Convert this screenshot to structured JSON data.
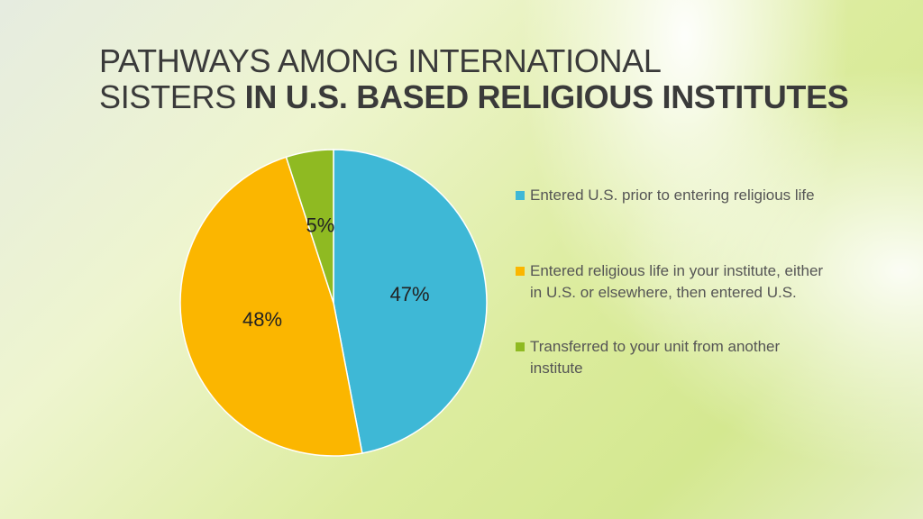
{
  "title": {
    "line1": "PATHWAYS AMONG INTERNATIONAL",
    "line2_normal": "SISTERS ",
    "line2_bold": "IN U.S. BASED RELIGIOUS INSTITUTES"
  },
  "chart_data": {
    "type": "pie",
    "categories": [
      "Entered U.S. prior to entering religious life",
      "Entered religious life in your institute, either in U.S. or elsewhere, then entered U.S.",
      "Transferred to your unit from another institute"
    ],
    "values": [
      47,
      48,
      5
    ],
    "data_labels": [
      "47%",
      "48%",
      "5%"
    ],
    "colors": [
      "#3eb8d6",
      "#fbb600",
      "#8fba22"
    ],
    "legend_position": "right"
  }
}
